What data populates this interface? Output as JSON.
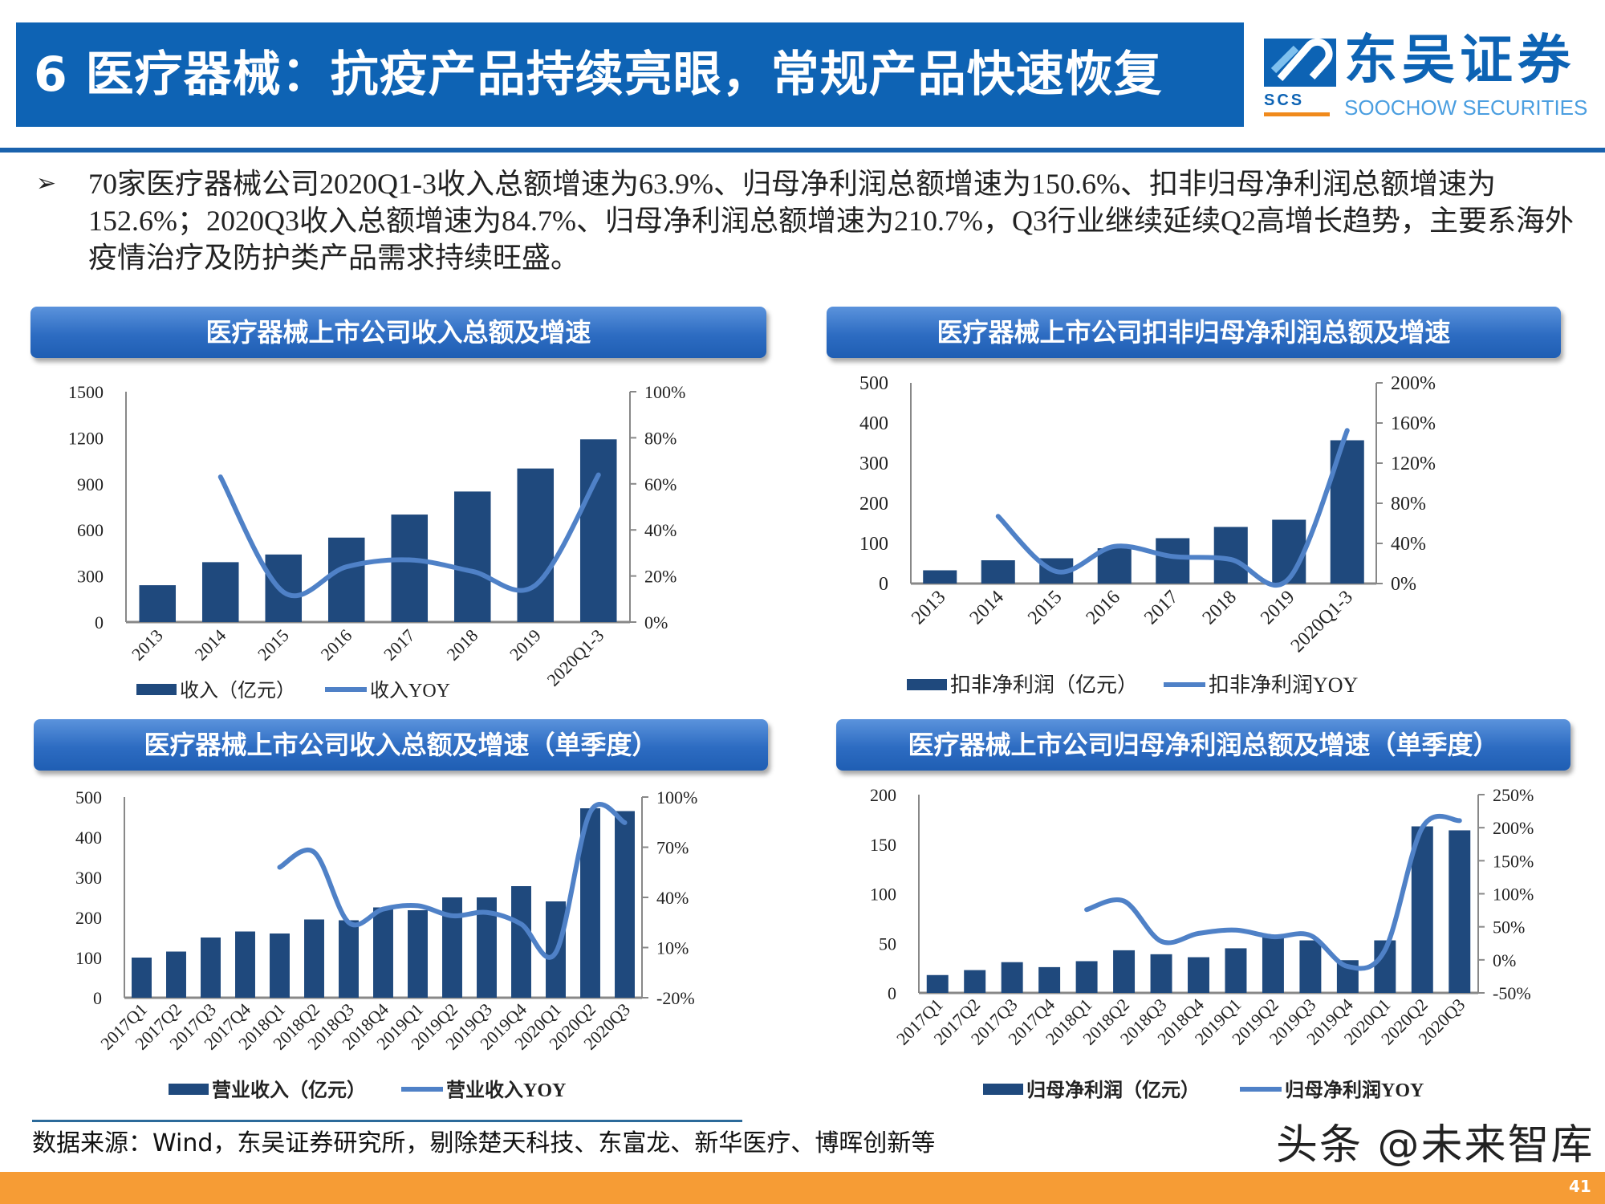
{
  "header": {
    "title": "6 医疗器械：抗疫产品持续亮眼，常规产品快速恢复"
  },
  "logo": {
    "cn": "东吴证券",
    "en": "SOOCHOW SECURITIES",
    "mark": "SCS"
  },
  "bullet": {
    "icon": "arrow-bullet-icon",
    "text": "70家医疗器械公司2020Q1-3收入总额增速为63.9%、归母净利润总额增速为150.6%、扣非归母净利润总额增速为152.6%；2020Q3收入总额增速为84.7%、归母净利润总额增速为210.7%，Q3行业继续延续Q2高增长趋势，主要系海外疫情治疗及防护类产品需求持续旺盛。"
  },
  "colors": {
    "bar": "#1f497d",
    "line": "#4f81c7",
    "header": "#0e63b4",
    "band": "#f69c35"
  },
  "chart_data": [
    {
      "type": "bar+line",
      "title": "医疗器械上市公司收入总额及增速",
      "categories": [
        "2013",
        "2014",
        "2015",
        "2016",
        "2017",
        "2018",
        "2019",
        "2020Q1-3"
      ],
      "series": [
        {
          "name": "收入（亿元）",
          "type": "bar",
          "axis": "left",
          "values": [
            240,
            390,
            440,
            550,
            700,
            850,
            1000,
            1190
          ]
        },
        {
          "name": "收入YOY",
          "type": "line",
          "axis": "right",
          "values": [
            null,
            63,
            13,
            24,
            27,
            22,
            16,
            63.9
          ]
        }
      ],
      "ylim_left": [
        0,
        1500
      ],
      "yticks_left": [
        "0",
        "300",
        "600",
        "900",
        "1200",
        "1500"
      ],
      "ylim_right": [
        0,
        100
      ],
      "yticks_right": [
        "0%",
        "20%",
        "40%",
        "60%",
        "80%",
        "100%"
      ],
      "legend": "bottom"
    },
    {
      "type": "bar+line",
      "title": "医疗器械上市公司扣非归母净利润总额及增速",
      "categories": [
        "2013",
        "2014",
        "2015",
        "2016",
        "2017",
        "2018",
        "2019",
        "2020Q1-3"
      ],
      "series": [
        {
          "name": "扣非净利润（亿元）",
          "type": "bar",
          "axis": "left",
          "values": [
            33,
            58,
            63,
            88,
            113,
            141,
            159,
            357
          ]
        },
        {
          "name": "扣非净利润YOY",
          "type": "line",
          "axis": "right",
          "values": [
            null,
            67,
            12,
            37,
            27,
            24,
            5,
            152.6
          ]
        }
      ],
      "ylim_left": [
        0,
        500
      ],
      "yticks_left": [
        "0",
        "100",
        "200",
        "300",
        "400",
        "500"
      ],
      "ylim_right": [
        0,
        200
      ],
      "yticks_right": [
        "0%",
        "40%",
        "80%",
        "120%",
        "160%",
        "200%"
      ],
      "legend": "bottom"
    },
    {
      "type": "bar+line",
      "title": "医疗器械上市公司收入总额及增速（单季度）",
      "categories": [
        "2017Q1",
        "2017Q2",
        "2017Q3",
        "2017Q4",
        "2018Q1",
        "2018Q2",
        "2018Q3",
        "2018Q4",
        "2019Q1",
        "2019Q2",
        "2019Q3",
        "2019Q4",
        "2020Q1",
        "2020Q2",
        "2020Q3"
      ],
      "series": [
        {
          "name": "营业收入（亿元）",
          "type": "bar",
          "axis": "left",
          "values": [
            100,
            115,
            150,
            165,
            160,
            195,
            193,
            225,
            218,
            250,
            250,
            278,
            240,
            472,
            465
          ]
        },
        {
          "name": "营业收入YOY",
          "type": "line",
          "axis": "right",
          "values": [
            null,
            null,
            null,
            null,
            58,
            67,
            25,
            33,
            35,
            29,
            31,
            24,
            7,
            91,
            84.7
          ]
        }
      ],
      "ylim_left": [
        0,
        500
      ],
      "yticks_left": [
        "0",
        "100",
        "200",
        "300",
        "400",
        "500"
      ],
      "ylim_right": [
        -20,
        100
      ],
      "yticks_right": [
        "-20%",
        "10%",
        "40%",
        "70%",
        "100%"
      ],
      "legend": "bottom"
    },
    {
      "type": "bar+line",
      "title": "医疗器械上市公司归母净利润总额及增速（单季度）",
      "categories": [
        "2017Q1",
        "2017Q2",
        "2017Q3",
        "2017Q4",
        "2018Q1",
        "2018Q2",
        "2018Q3",
        "2018Q4",
        "2019Q1",
        "2019Q2",
        "2019Q3",
        "2019Q4",
        "2020Q1",
        "2020Q2",
        "2020Q3"
      ],
      "series": [
        {
          "name": "归母净利润（亿元）",
          "type": "bar",
          "axis": "left",
          "values": [
            18,
            23,
            31,
            26,
            32,
            43,
            39,
            36,
            45,
            56,
            53,
            33,
            53,
            168,
            164
          ]
        },
        {
          "name": "归母净利润YOY",
          "type": "line",
          "axis": "right",
          "values": [
            null,
            null,
            null,
            null,
            76,
            89,
            28,
            40,
            45,
            35,
            37,
            -10,
            15,
            200,
            210.7
          ]
        }
      ],
      "ylim_left": [
        0,
        200
      ],
      "yticks_left": [
        "0",
        "50",
        "100",
        "150",
        "200"
      ],
      "ylim_right": [
        -50,
        250
      ],
      "yticks_right": [
        "-50%",
        "0%",
        "50%",
        "100%",
        "150%",
        "200%",
        "250%"
      ],
      "legend": "bottom"
    }
  ],
  "footer": {
    "source": "数据来源：Wind，东吴证券研究所，剔除楚天科技、东富龙、新华医疗、博晖创新等",
    "watermark": "头条 @未来智库",
    "page_number": "41"
  }
}
